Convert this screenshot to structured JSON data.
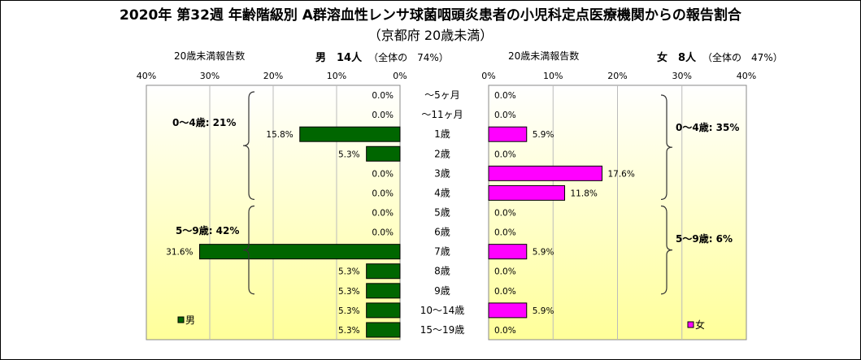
{
  "title": "2020年 第32週 年齢階級別 A群溶血性レンサ球菌咽頭炎患者の小児科定点医療機関からの報告割合",
  "subtitle": "（京都府 20歳未満）",
  "colors": {
    "male": "#006600",
    "female": "#FF00FF",
    "panel_gradient_top": "#FFFFFF",
    "panel_gradient_bottom": "#FFFF99"
  },
  "chart_data": {
    "type": "bar",
    "orientation": "horizontal",
    "categories": [
      "〜5ヶ月",
      "〜11ヶ月",
      "1歳",
      "2歳",
      "3歳",
      "4歳",
      "5歳",
      "6歳",
      "7歳",
      "8歳",
      "9歳",
      "10〜14歳",
      "15〜19歳"
    ],
    "male": {
      "header_left": "20歳未満報告数",
      "header_name": "男　14人",
      "header_share": "（全体の　74%）",
      "legend": "男",
      "ticks": [
        "40%",
        "30%",
        "20%",
        "10%",
        "0%"
      ],
      "xlim": [
        0,
        40
      ],
      "values": [
        0.0,
        0.0,
        15.8,
        5.3,
        0.0,
        0.0,
        0.0,
        0.0,
        31.6,
        5.3,
        5.3,
        5.3,
        5.3
      ],
      "value_labels": [
        "0.0%",
        "0.0%",
        "15.8%",
        "5.3%",
        "0.0%",
        "0.0%",
        "0.0%",
        "0.0%",
        "31.6%",
        "5.3%",
        "5.3%",
        "5.3%",
        "5.3%"
      ],
      "brackets": [
        "0〜4歳: 21%",
        "5〜9歳: 42%"
      ]
    },
    "female": {
      "header_left": "20歳未満報告数",
      "header_name": "女　8人",
      "header_share": "（全体の　47%）",
      "legend": "女",
      "ticks": [
        "0%",
        "10%",
        "20%",
        "30%",
        "40%"
      ],
      "xlim": [
        0,
        40
      ],
      "values": [
        0.0,
        0.0,
        5.9,
        0.0,
        17.6,
        11.8,
        0.0,
        0.0,
        5.9,
        0.0,
        0.0,
        5.9,
        0.0
      ],
      "value_labels": [
        "0.0%",
        "0.0%",
        "5.9%",
        "0.0%",
        "17.6%",
        "11.8%",
        "0.0%",
        "0.0%",
        "5.9%",
        "0.0%",
        "0.0%",
        "5.9%",
        "0.0%"
      ],
      "brackets": [
        "0〜4歳: 35%",
        "5〜9歳: 6%"
      ]
    }
  }
}
